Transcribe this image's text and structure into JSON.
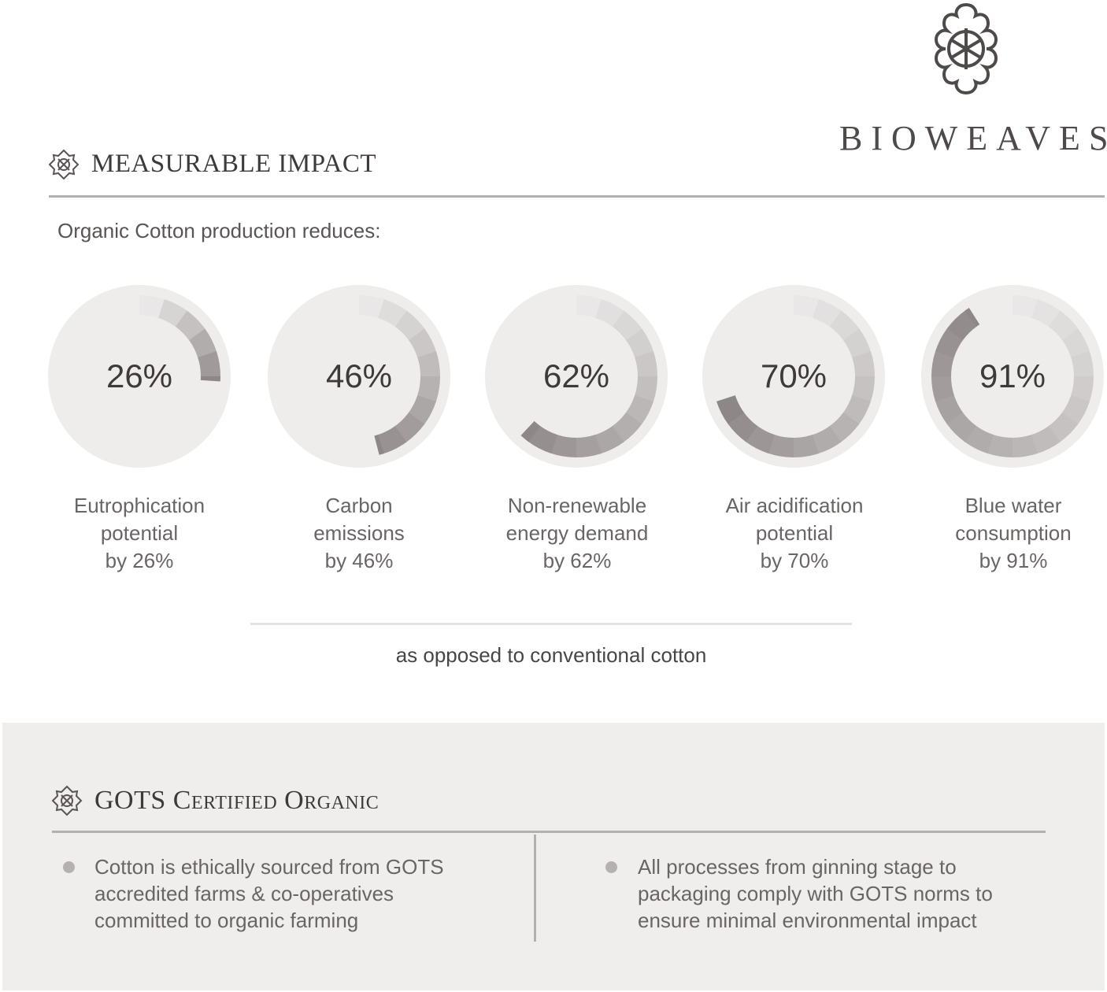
{
  "brand": {
    "name": "BIOWEAVES",
    "logo_icon": "celtic-knot-quatrefoil-icon"
  },
  "impact": {
    "title": "MEASURABLE IMPACT",
    "icon": "knot-emblem-icon",
    "intro": "Organic Cotton production reduces:",
    "note": "as opposed to conventional cotton"
  },
  "chart_data": {
    "type": "radial-gauge",
    "range": [
      0,
      100
    ],
    "unit": "%",
    "colors": {
      "start": "#e9e7e7",
      "end": "#8e8787",
      "disc": "#efedec"
    },
    "items": [
      {
        "value": 26,
        "text": "26%",
        "label_lines": [
          "Eutrophication",
          "potential",
          "by 26%"
        ]
      },
      {
        "value": 46,
        "text": "46%",
        "label_lines": [
          "Carbon",
          "emissions",
          "by 46%"
        ]
      },
      {
        "value": 62,
        "text": "62%",
        "label_lines": [
          "Non-renewable",
          "energy demand",
          "by 62%"
        ]
      },
      {
        "value": 70,
        "text": "70%",
        "label_lines": [
          "Air acidification",
          "potential",
          "by 70%"
        ]
      },
      {
        "value": 91,
        "text": "91%",
        "label_lines": [
          "Blue water",
          "consumption",
          "by 91%"
        ]
      }
    ]
  },
  "gots": {
    "title": "GOTS Certified Organic",
    "icon": "knot-emblem-icon",
    "points": [
      {
        "lines": [
          "Cotton is ethically sourced from GOTS",
          "accredited farms & co-operatives",
          "committed to organic farming"
        ]
      },
      {
        "lines": [
          "All processes from ginning stage to",
          "packaging comply with GOTS norms to",
          "ensure minimal environmental impact"
        ]
      }
    ]
  }
}
